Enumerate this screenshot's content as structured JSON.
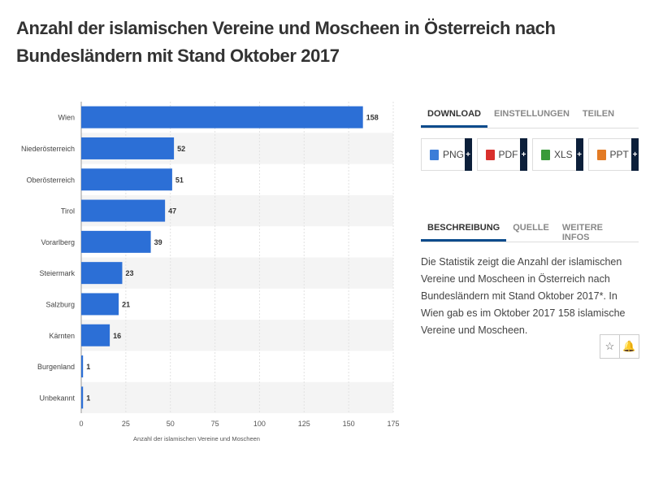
{
  "page": {
    "title": "Anzahl der islamischen Vereine und Moscheen in Österreich nach Bundesländern mit Stand Oktober 2017"
  },
  "chart_data": {
    "type": "bar",
    "orientation": "horizontal",
    "categories": [
      "Wien",
      "Niederösterreich",
      "Oberösterreich",
      "Tirol",
      "Vorarlberg",
      "Steiermark",
      "Salzburg",
      "Kärnten",
      "Burgenland",
      "Unbekannt"
    ],
    "values": [
      158,
      52,
      51,
      47,
      39,
      23,
      21,
      16,
      1,
      1
    ],
    "xlabel": "Anzahl der islamischen Vereine und Moscheen",
    "xlim": [
      0,
      175
    ],
    "xticks": [
      0,
      25,
      50,
      75,
      100,
      125,
      150,
      175
    ],
    "bar_color": "#2c6fd6",
    "stripe_color": "#f4f4f4",
    "grid": true
  },
  "panel": {
    "tabs": [
      "DOWNLOAD",
      "EINSTELLUNGEN",
      "TEILEN"
    ],
    "downloads": [
      {
        "label": "PNG",
        "color": "#3b7dd8"
      },
      {
        "label": "PDF",
        "color": "#d9302c"
      },
      {
        "label": "XLS",
        "color": "#3a9a3a"
      },
      {
        "label": "PPT",
        "color": "#e37b25"
      }
    ],
    "plus": "+",
    "info_tabs": [
      "BESCHREIBUNG",
      "QUELLE",
      "WEITERE INFOS"
    ],
    "description": "Die Statistik zeigt die Anzahl der islamischen Vereine und Moscheen in Österreich nach Bundesländern mit Stand Oktober 2017*. In Wien gab es im Oktober 2017 158 islamische Vereine und Moscheen.",
    "icons": [
      {
        "name": "star-icon",
        "glyph": "☆"
      },
      {
        "name": "bell-icon",
        "glyph": "🔔"
      }
    ]
  }
}
